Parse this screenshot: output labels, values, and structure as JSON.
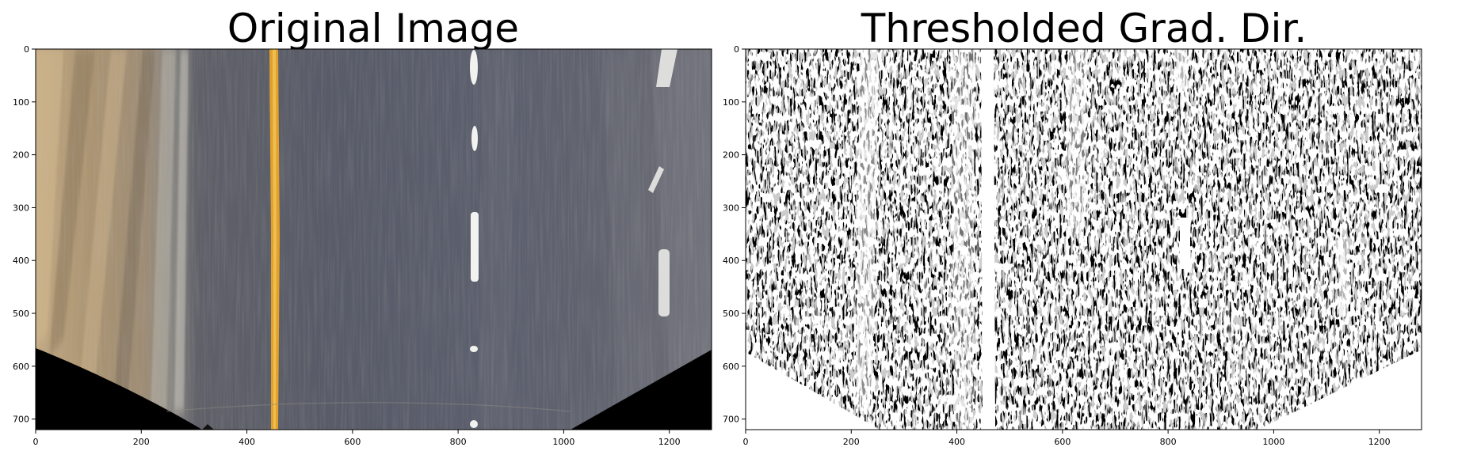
{
  "panels": [
    {
      "title": "Original Image",
      "kind": "photo",
      "x_ticks": [
        "0",
        "200",
        "400",
        "600",
        "800",
        "1000",
        "1200"
      ],
      "y_ticks": [
        "0",
        "100",
        "200",
        "300",
        "400",
        "500",
        "600",
        "700"
      ],
      "colors": {
        "road": "#5b5e6b",
        "left_shoulder": "#a48f6f",
        "yellow_line": "#e5a52b",
        "white_dashes": "#f2f2f0",
        "outside_warp": "#000000"
      }
    },
    {
      "title": "Thresholded Grad. Dir.",
      "kind": "binary-mask",
      "x_ticks": [
        "0",
        "200",
        "400",
        "600",
        "800",
        "1000",
        "1200"
      ],
      "y_ticks": [
        "0",
        "100",
        "200",
        "300",
        "400",
        "500",
        "600",
        "700"
      ],
      "colors": {
        "background": "#000000",
        "foreground": "#ffffff"
      }
    }
  ]
}
